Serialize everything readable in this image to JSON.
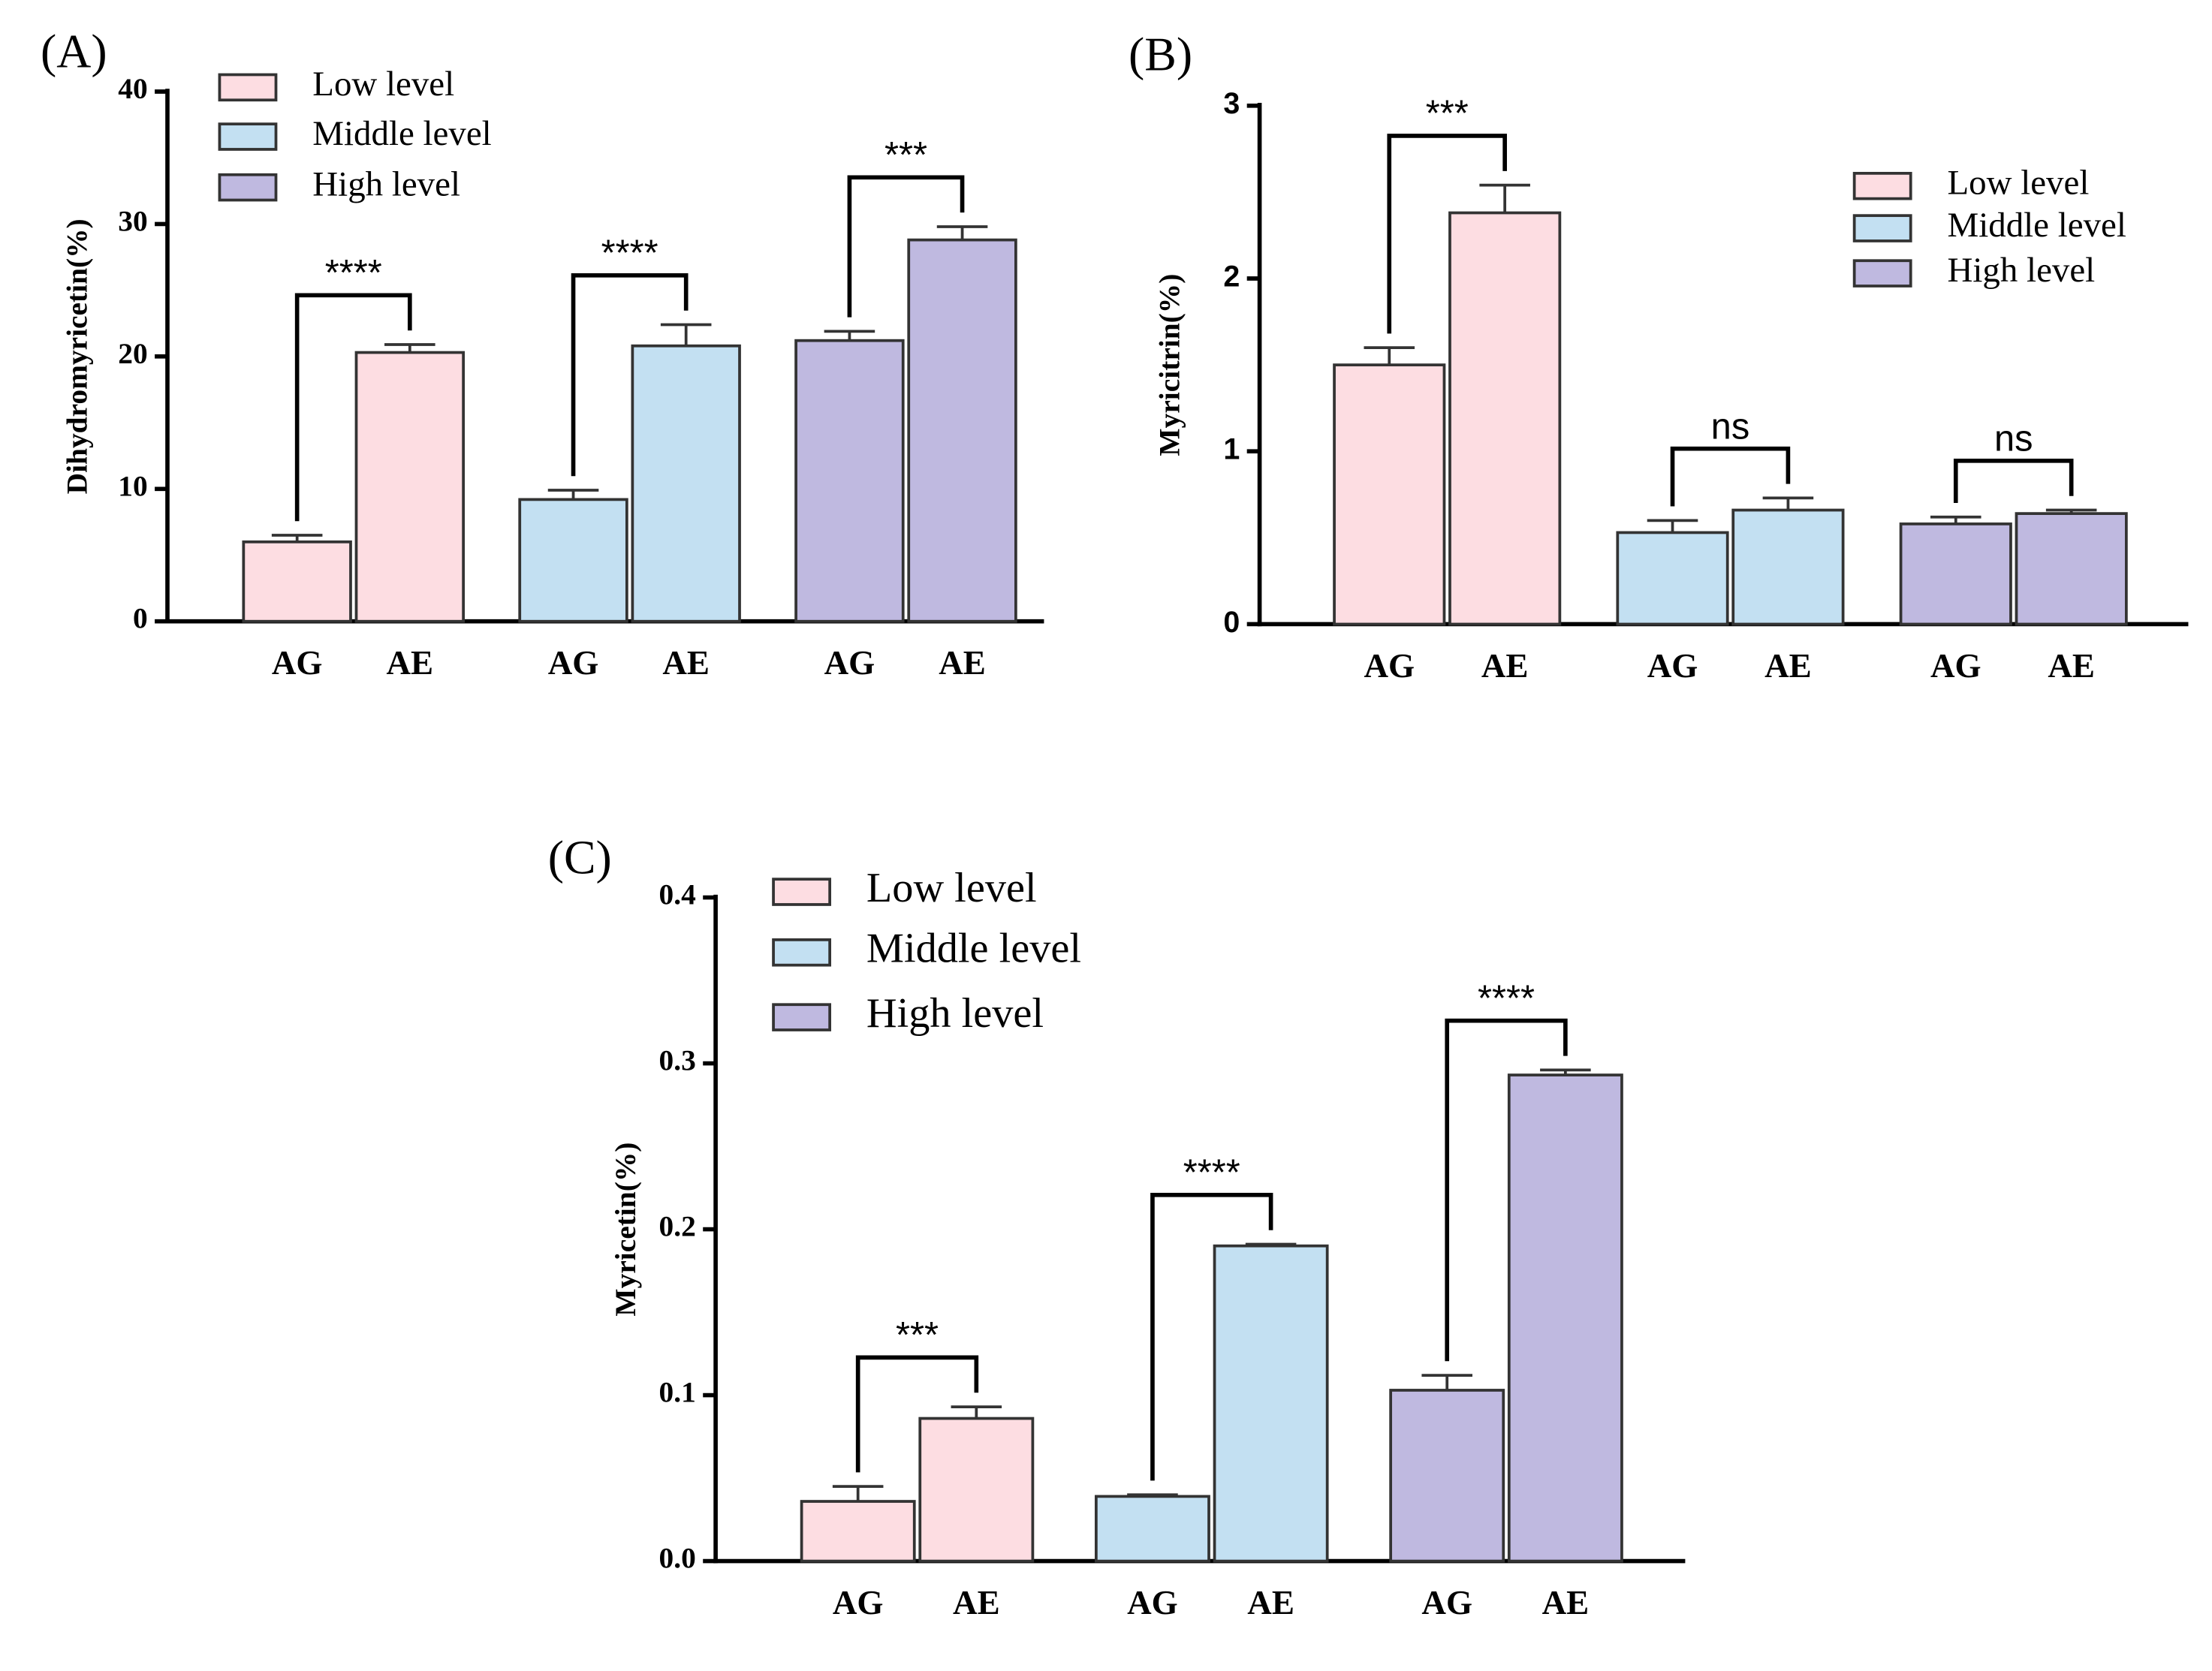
{
  "chart_data": [
    {
      "type": "bar",
      "panel_label": "(A)",
      "ylabel": "Dihydromyricetin(%)",
      "categories": [
        "AG",
        "AE"
      ],
      "ylim": [
        0,
        40
      ],
      "yticks": [
        0,
        10,
        20,
        30,
        40
      ],
      "series": [
        {
          "name": "Low level",
          "color": "#fddde2",
          "values": [
            6.0,
            20.3
          ],
          "errors": [
            0.5,
            0.6
          ],
          "significance": "****"
        },
        {
          "name": "Middle level",
          "color": "#c3e0f2",
          "values": [
            9.2,
            20.8
          ],
          "errors": [
            0.7,
            1.6
          ],
          "significance": "****"
        },
        {
          "name": "High level",
          "color": "#bfb9e0",
          "values": [
            21.2,
            28.8
          ],
          "errors": [
            0.7,
            1.0
          ],
          "significance": "***"
        }
      ]
    },
    {
      "type": "bar",
      "panel_label": "(B)",
      "ylabel": "Myricitrin(%)",
      "categories": [
        "AG",
        "AE"
      ],
      "ylim": [
        0,
        3
      ],
      "yticks": [
        0,
        1,
        2,
        3
      ],
      "series": [
        {
          "name": "Low level",
          "color": "#fddde2",
          "values": [
            1.5,
            2.38
          ],
          "errors": [
            0.1,
            0.16
          ],
          "significance": "***"
        },
        {
          "name": "Middle level",
          "color": "#c3e0f2",
          "values": [
            0.53,
            0.66
          ],
          "errors": [
            0.07,
            0.07
          ],
          "significance": "ns"
        },
        {
          "name": "High level",
          "color": "#bfb9e0",
          "values": [
            0.58,
            0.64
          ],
          "errors": [
            0.04,
            0.02
          ],
          "significance": "ns"
        }
      ]
    },
    {
      "type": "bar",
      "panel_label": "(C)",
      "ylabel": "Myricetin(%)",
      "categories": [
        "AG",
        "AE"
      ],
      "ylim": [
        0,
        0.4
      ],
      "yticks": [
        {
          "value": 0,
          "label": "0.0"
        },
        0.1,
        0.2,
        0.3,
        0.4
      ],
      "series": [
        {
          "name": "Low level",
          "color": "#fddde2",
          "values": [
            0.036,
            0.086
          ],
          "errors": [
            0.009,
            0.007
          ],
          "significance": "***"
        },
        {
          "name": "Middle level",
          "color": "#c3e0f2",
          "values": [
            0.039,
            0.19
          ],
          "errors": [
            0.001,
            0.001
          ],
          "significance": "****"
        },
        {
          "name": "High level",
          "color": "#bfb9e0",
          "values": [
            0.103,
            0.293
          ],
          "errors": [
            0.009,
            0.003
          ],
          "significance": "****"
        }
      ]
    }
  ]
}
